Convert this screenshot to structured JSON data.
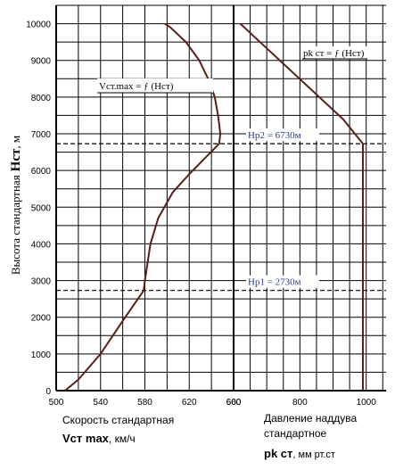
{
  "chart_data": {
    "type": "line",
    "ylabel_prefix": "Высота стандартная",
    "ylabel_bold": "Нст",
    "ylabel_suffix": ", м",
    "ylim": [
      0,
      10500
    ],
    "yticks": [
      0,
      1000,
      2000,
      3000,
      4000,
      5000,
      6000,
      7000,
      8000,
      9000,
      10000
    ],
    "grid": true,
    "left_panel": {
      "xlabel_line1": "Скорость стандартная",
      "xlabel_bold": "Vст max",
      "xlabel_unit": ", км/ч",
      "xlim": [
        500,
        660
      ],
      "xticks": [
        500,
        540,
        580,
        620,
        660
      ],
      "series": {
        "label": "Vст.max = ƒ (Нст)",
        "x": [
          508,
          520,
          540,
          560,
          579,
          580,
          585,
          592,
          605,
          620,
          633,
          647,
          648,
          646,
          643,
          637,
          629,
          617,
          603,
          598
        ],
        "y": [
          0,
          300,
          1000,
          1900,
          2730,
          3000,
          4000,
          4700,
          5400,
          5900,
          6300,
          6730,
          7000,
          7500,
          8000,
          8500,
          9000,
          9500,
          9900,
          10000
        ]
      }
    },
    "right_panel": {
      "xlabel_line1": "Давление наддува",
      "xlabel_line2": "стандартное",
      "xlabel_bold": "pk ст",
      "xlabel_unit": ", мм рт.ст",
      "xlim": [
        600,
        1060
      ],
      "xticks": [
        600,
        800,
        1000
      ],
      "series": {
        "label": "pk ст = ƒ (Нст)",
        "x": [
          990,
          990,
          930,
          620
        ],
        "y": [
          0,
          6730,
          7400,
          10000
        ]
      }
    },
    "annotations": [
      {
        "text": "Нр2 = 6730м",
        "y": 6730
      },
      {
        "text": "Нр1 = 2730м",
        "y": 2730
      }
    ]
  }
}
